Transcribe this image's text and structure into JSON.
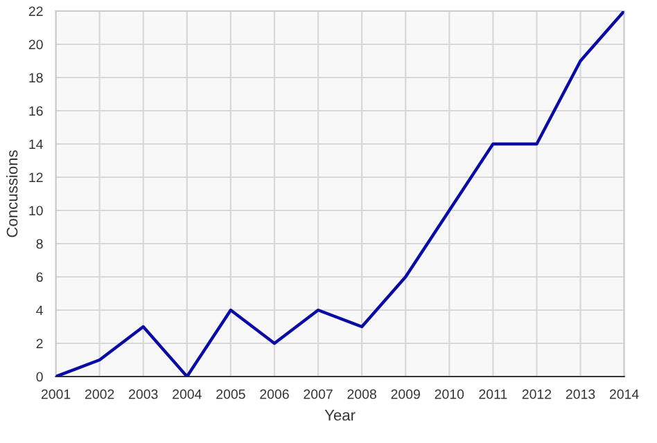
{
  "chart_data": {
    "type": "line",
    "xlabel": "Year",
    "ylabel": "Concussions",
    "x": [
      2001,
      2002,
      2003,
      2004,
      2005,
      2006,
      2007,
      2008,
      2009,
      2010,
      2011,
      2012,
      2013,
      2014
    ],
    "series": [
      {
        "color": "#0a0aa5",
        "values": [
          0,
          1,
          3,
          0,
          4,
          2,
          4,
          3,
          6,
          10,
          14,
          14,
          19,
          22
        ]
      }
    ],
    "xlim": [
      2001,
      2014
    ],
    "xticks": [
      2001,
      2002,
      2003,
      2004,
      2005,
      2006,
      2007,
      2008,
      2009,
      2010,
      2011,
      2012,
      2013,
      2014
    ],
    "ylim": [
      0,
      22
    ],
    "yticks": [
      0,
      2,
      4,
      6,
      8,
      10,
      12,
      14,
      16,
      18,
      20,
      22
    ],
    "grid": true,
    "marker": "none",
    "line_style": "solid"
  }
}
